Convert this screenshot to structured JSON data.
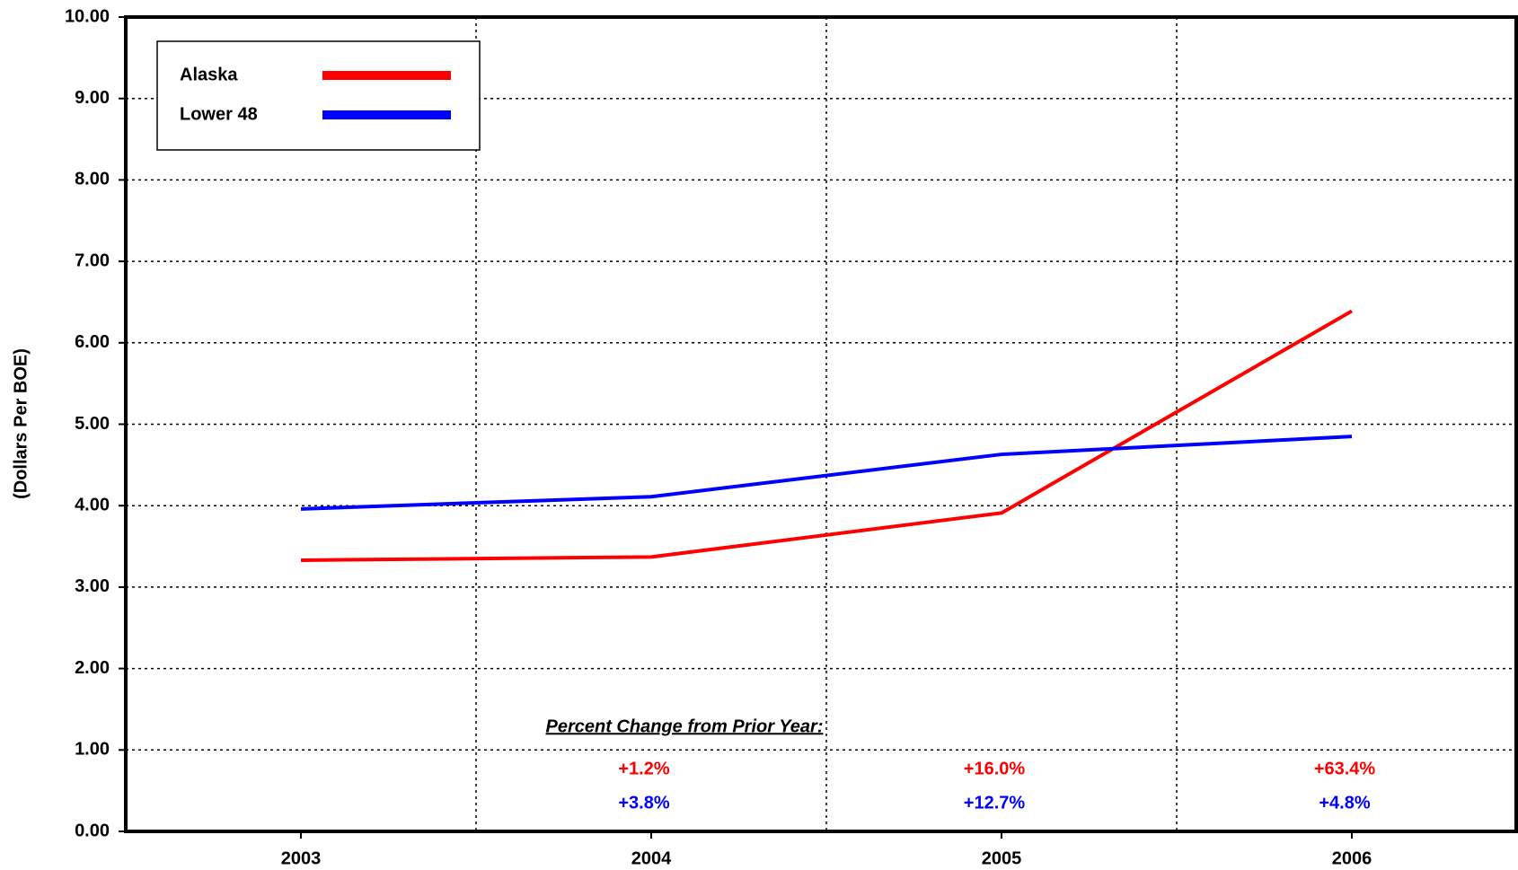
{
  "chart_data": {
    "type": "line",
    "y_label": "(Dollars Per BOE)",
    "categories": [
      "2003",
      "2004",
      "2005",
      "2006"
    ],
    "series": [
      {
        "name": "Alaska",
        "color": "#ff0000",
        "values": [
          3.33,
          3.37,
          3.91,
          6.39
        ],
        "change_labels": [
          null,
          "+1.2%",
          "+16.0%",
          "+63.4%"
        ]
      },
      {
        "name": "Lower 48",
        "color": "#0000ff",
        "values": [
          3.96,
          4.11,
          4.63,
          4.85
        ],
        "change_labels": [
          null,
          "+3.8%",
          "+12.7%",
          "+4.8%"
        ]
      }
    ],
    "annotation": "Percent Change from Prior Year:",
    "ylim": [
      0,
      10
    ],
    "yticks": [
      {
        "value": 0,
        "label": "0.00"
      },
      {
        "value": 1,
        "label": "1.00"
      },
      {
        "value": 2,
        "label": "2.00"
      },
      {
        "value": 3,
        "label": "3.00"
      },
      {
        "value": 4,
        "label": "4.00"
      },
      {
        "value": 5,
        "label": "5.00"
      },
      {
        "value": 6,
        "label": "6.00"
      },
      {
        "value": 7,
        "label": "7.00"
      },
      {
        "value": 8,
        "label": "8.00"
      },
      {
        "value": 9,
        "label": "9.00"
      },
      {
        "value": 10,
        "label": "10.00"
      }
    ],
    "grid": true,
    "legend": "upper left"
  }
}
